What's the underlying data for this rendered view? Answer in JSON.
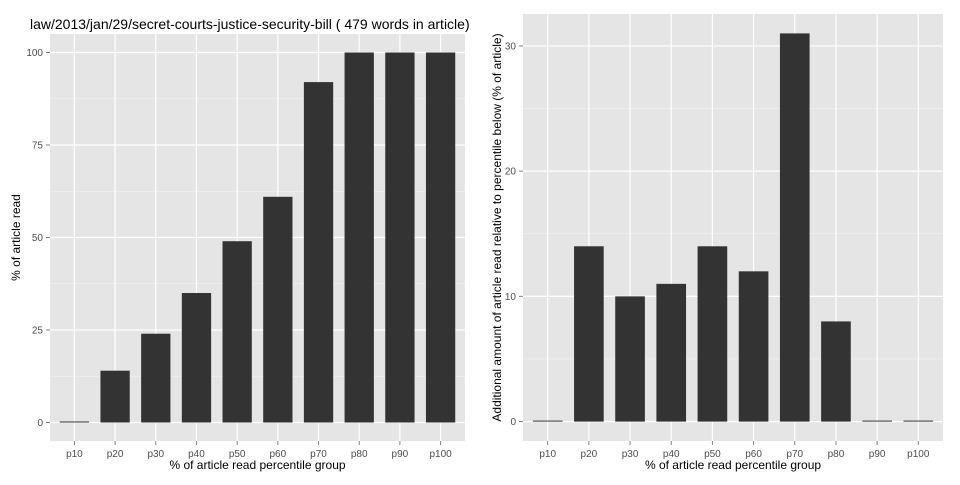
{
  "chart_data": [
    {
      "type": "bar",
      "title": "law/2013/jan/29/secret-courts-justice-security-bill ( 479 words in article)",
      "xlabel": "% of article read percentile group",
      "ylabel": "% of article read",
      "categories": [
        "p10",
        "p20",
        "p30",
        "p40",
        "p50",
        "p60",
        "p70",
        "p80",
        "p90",
        "p100"
      ],
      "values": [
        0,
        14,
        24,
        35,
        49,
        61,
        92,
        100,
        100,
        100
      ],
      "ylim": [
        -5,
        105
      ],
      "yticks": [
        0,
        25,
        50,
        75,
        100
      ],
      "grid": true,
      "colors": {
        "bar": "#333333",
        "panel": "#e5e5e5",
        "grid": "#ffffff"
      }
    },
    {
      "type": "bar",
      "title": "",
      "xlabel": "% of article read percentile group",
      "ylabel": "Additional amount of article read relative to percentile below (% of article)",
      "categories": [
        "p10",
        "p20",
        "p30",
        "p40",
        "p50",
        "p60",
        "p70",
        "p80",
        "p90",
        "p100"
      ],
      "values": [
        0,
        14,
        10,
        11,
        14,
        12,
        31,
        8,
        0,
        0
      ],
      "ylim": [
        -1.55,
        32.55
      ],
      "yticks": [
        0,
        10,
        20,
        30
      ],
      "grid": true,
      "colors": {
        "bar": "#333333",
        "panel": "#e5e5e5",
        "grid": "#ffffff"
      }
    }
  ]
}
